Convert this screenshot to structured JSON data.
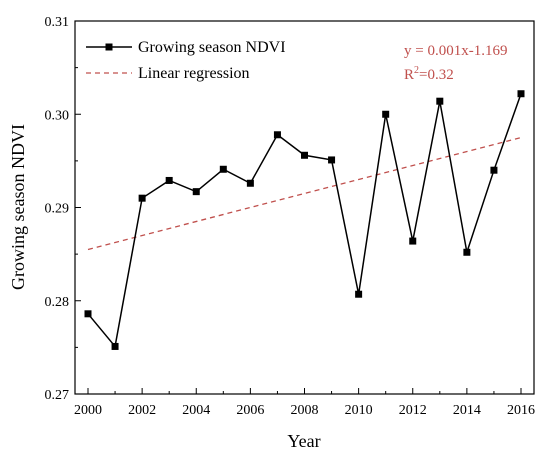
{
  "chart_data": {
    "type": "line",
    "xlabel": "Year",
    "ylabel": "Growing season NDVI",
    "xlim": [
      2000,
      2016
    ],
    "ylim": [
      0.27,
      0.31
    ],
    "x_ticks": [
      2000,
      2002,
      2004,
      2006,
      2008,
      2010,
      2012,
      2014,
      2016
    ],
    "x_tick_labels": [
      "2000",
      "2002",
      "2004",
      "2006",
      "2008",
      "2010",
      "2012",
      "2014",
      "2016"
    ],
    "y_ticks": [
      0.27,
      0.28,
      0.29,
      0.3,
      0.31
    ],
    "y_tick_labels": [
      "0.27",
      "0.28",
      "0.29",
      "0.30",
      "0.31"
    ],
    "grid": false,
    "legend_position": "top-left",
    "series": [
      {
        "name": "Growing season NDVI",
        "style": "solid line with square markers",
        "color": "#000000",
        "x": [
          2000,
          2001,
          2002,
          2003,
          2004,
          2005,
          2006,
          2007,
          2008,
          2009,
          2010,
          2011,
          2012,
          2013,
          2014,
          2015,
          2016
        ],
        "values": [
          0.2786,
          0.2751,
          0.291,
          0.2929,
          0.2917,
          0.2941,
          0.2926,
          0.2978,
          0.2956,
          0.2951,
          0.2807,
          0.3,
          0.2864,
          0.3014,
          0.2852,
          0.294,
          0.3022
        ]
      },
      {
        "name": "Linear regression",
        "style": "dashed",
        "color": "#c0504d",
        "x": [
          2000,
          2016
        ],
        "values": [
          0.2855,
          0.2975
        ]
      }
    ],
    "annotations": {
      "equation": "y = 0.001x-1.169",
      "r2_prefix": "R",
      "r2_sup": "2",
      "r2_value": "=0.32",
      "color": "#c0504d"
    }
  }
}
